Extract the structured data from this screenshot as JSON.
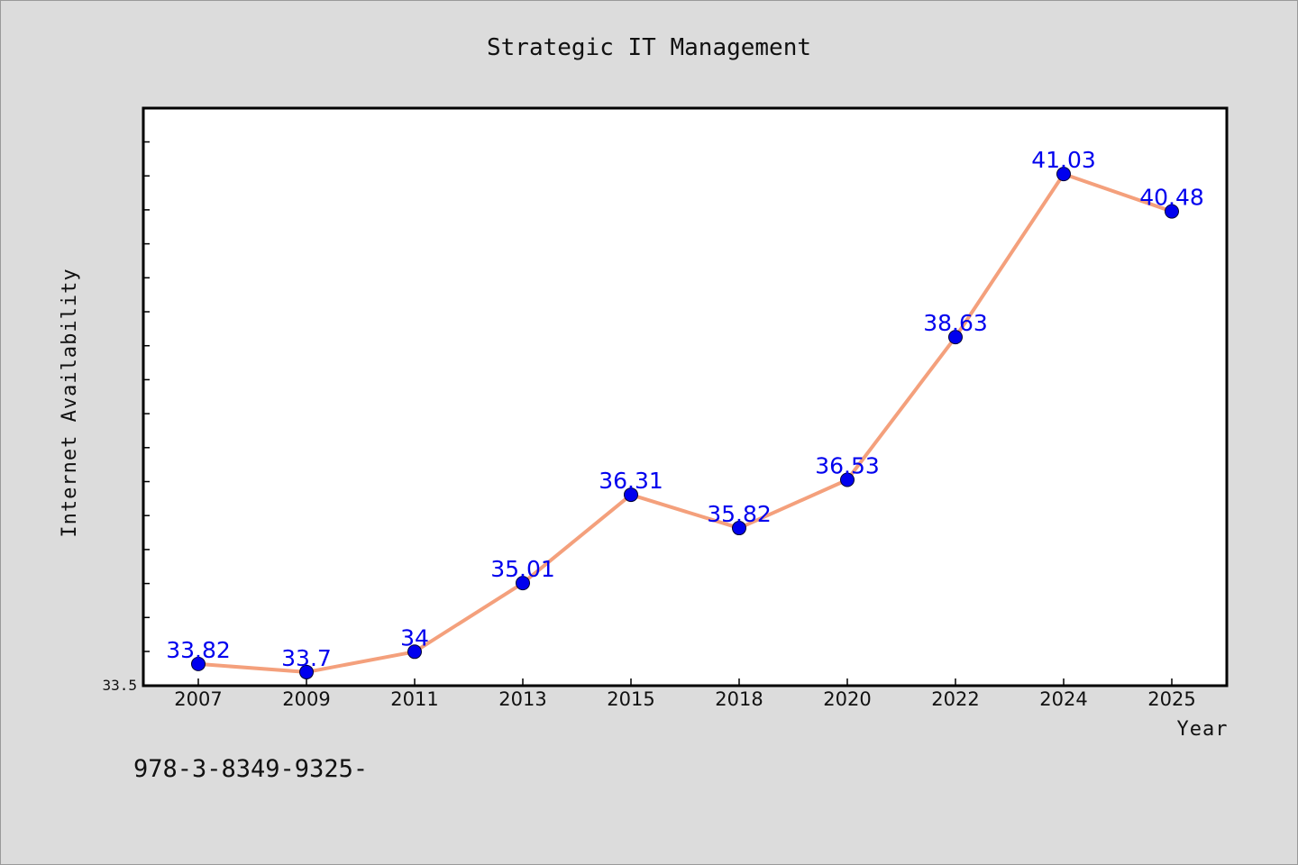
{
  "chart_data": {
    "type": "line",
    "title": "Strategic IT Management",
    "xlabel": "Year",
    "ylabel": "Internet Availability",
    "categories": [
      "2007",
      "2009",
      "2011",
      "2013",
      "2015",
      "2018",
      "2020",
      "2022",
      "2024",
      "2025"
    ],
    "series": [
      {
        "values": [
          33.82,
          33.7,
          34,
          35.01,
          36.31,
          35.82,
          36.53,
          38.63,
          41.03,
          40.48
        ],
        "data_labels": [
          "33.82",
          "33.7",
          "34",
          "35.01",
          "36.31",
          "35.82",
          "36.53",
          "38.63",
          "41.03",
          "40.48"
        ]
      }
    ],
    "yticks": [
      {
        "value": 33.5,
        "label": "33.5"
      }
    ],
    "ylim": [
      33.5,
      42.0
    ],
    "grid": false,
    "legend": "none",
    "colors": {
      "line": "#f4a07c",
      "marker": "#0000ee",
      "data_label": "#0000ee",
      "axis": "#000000",
      "plot_background": "#ffffff",
      "page_background": "#dcdcdc"
    }
  },
  "footer": {
    "text": "978-3-8349-9325-"
  }
}
